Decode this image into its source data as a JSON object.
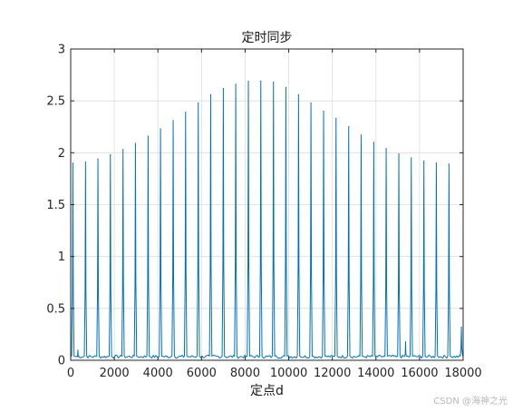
{
  "chart_data": {
    "type": "line",
    "title": "定时同步",
    "xlabel": "定点d",
    "ylabel": "",
    "xlim": [
      0,
      18000
    ],
    "ylim": [
      0,
      3
    ],
    "xticks": [
      0,
      2000,
      4000,
      6000,
      8000,
      10000,
      12000,
      14000,
      16000,
      18000
    ],
    "xtick_labels": [
      "0",
      "2000",
      "4000",
      "6000",
      "8000",
      "10000",
      "12000",
      "14000",
      "16000",
      "18000"
    ],
    "yticks": [
      0,
      0.5,
      1,
      1.5,
      2,
      2.5,
      3
    ],
    "ytick_labels": [
      "0",
      "0.5",
      "1",
      "1.5",
      "2",
      "2.5",
      "3"
    ],
    "grid": true,
    "line_color": "#0072bd",
    "series": [
      {
        "peaks": [
          {
            "x": 100,
            "y": 1.9
          },
          {
            "x": 680,
            "y": 1.91
          },
          {
            "x": 1250,
            "y": 1.94
          },
          {
            "x": 1820,
            "y": 1.98
          },
          {
            "x": 2400,
            "y": 2.03
          },
          {
            "x": 2970,
            "y": 2.09
          },
          {
            "x": 3550,
            "y": 2.16
          },
          {
            "x": 4120,
            "y": 2.23
          },
          {
            "x": 4700,
            "y": 2.31
          },
          {
            "x": 5270,
            "y": 2.39
          },
          {
            "x": 5850,
            "y": 2.48
          },
          {
            "x": 6420,
            "y": 2.56
          },
          {
            "x": 7000,
            "y": 2.62
          },
          {
            "x": 7570,
            "y": 2.66
          },
          {
            "x": 8150,
            "y": 2.69
          },
          {
            "x": 8720,
            "y": 2.69
          },
          {
            "x": 9300,
            "y": 2.68
          },
          {
            "x": 9870,
            "y": 2.63
          },
          {
            "x": 10450,
            "y": 2.56
          },
          {
            "x": 11020,
            "y": 2.48
          },
          {
            "x": 11600,
            "y": 2.4
          },
          {
            "x": 12170,
            "y": 2.33
          },
          {
            "x": 12750,
            "y": 2.25
          },
          {
            "x": 13320,
            "y": 2.17
          },
          {
            "x": 13900,
            "y": 2.1
          },
          {
            "x": 14470,
            "y": 2.04
          },
          {
            "x": 15050,
            "y": 1.99
          },
          {
            "x": 15620,
            "y": 1.95
          },
          {
            "x": 16200,
            "y": 1.92
          },
          {
            "x": 16770,
            "y": 1.9
          },
          {
            "x": 17350,
            "y": 1.89
          },
          {
            "x": 17920,
            "y": 0.32
          }
        ],
        "minor_bumps": [
          {
            "x": 330,
            "y": 0.1
          },
          {
            "x": 15360,
            "y": 0.18
          }
        ],
        "baseline": 0.02
      }
    ]
  },
  "watermark": "CSDN @海神之光"
}
